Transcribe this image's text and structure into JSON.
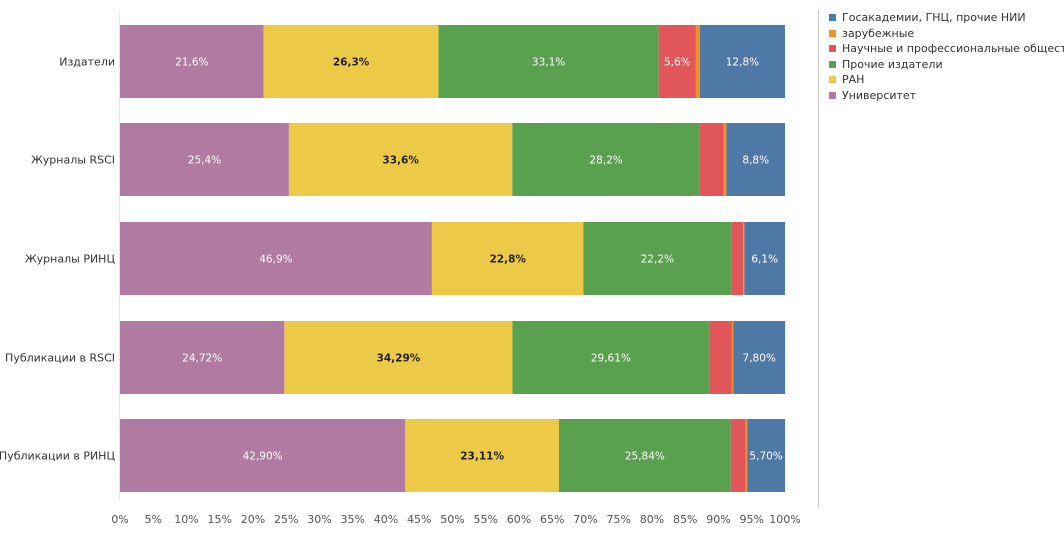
{
  "chart_data": {
    "type": "bar",
    "orientation": "horizontal",
    "stacked": true,
    "percent_scale": true,
    "categories": [
      "Издатели",
      "Журналы RSCI",
      "Журналы РИНЦ",
      "Публикации в RSCI",
      "Публикации в РИНЦ"
    ],
    "series": [
      {
        "name": "Университет",
        "color": "#b07aa1",
        "values": [
          21.6,
          25.4,
          46.9,
          24.72,
          42.9
        ],
        "labels": [
          "21,6%",
          "25,4%",
          "46,9%",
          "24,72%",
          "42,90%"
        ]
      },
      {
        "name": "РАН",
        "color": "#edc948",
        "values": [
          26.3,
          33.6,
          22.8,
          34.29,
          23.11
        ],
        "labels": [
          "26,3%",
          "33,6%",
          "22,8%",
          "34,29%",
          "23,11%"
        ]
      },
      {
        "name": "Прочие издатели",
        "color": "#59a14f",
        "values": [
          33.1,
          28.2,
          22.2,
          29.61,
          25.84
        ],
        "labels": [
          "33,1%",
          "28,2%",
          "22,2%",
          "29,61%",
          "25,84%"
        ]
      },
      {
        "name": "Научные и профессиональные общества",
        "color": "#e15759",
        "values": [
          5.6,
          3.6,
          1.8,
          3.4,
          2.2
        ],
        "labels": [
          "5,6%",
          "",
          "",
          "",
          ""
        ]
      },
      {
        "name": "зарубежные",
        "color": "#f28e2b",
        "values": [
          0.6,
          0.4,
          0.2,
          0.2,
          0.26
        ],
        "labels": [
          "",
          "",
          "",
          "",
          ""
        ]
      },
      {
        "name": "Госакадемии, ГНЦ, прочие НИИ",
        "color": "#4e79a7",
        "values": [
          12.8,
          8.8,
          6.1,
          7.8,
          5.7
        ],
        "labels": [
          "12,8%",
          "8,8%",
          "6,1%",
          "7,80%",
          "5,70%"
        ]
      }
    ],
    "label_colors": {
      "Университет": "#ffffff",
      "РАН": "#222222",
      "Прочие издатели": "#ffffff",
      "Научные и профессиональные общества": "#ffffff",
      "зарубежные": "#ffffff",
      "Госакадемии, ГНЦ, прочие НИИ": "#ffffff"
    },
    "xlim": [
      0,
      100
    ],
    "x_ticks": [
      "0%",
      "5%",
      "10%",
      "15%",
      "20%",
      "25%",
      "30%",
      "35%",
      "40%",
      "45%",
      "50%",
      "55%",
      "60%",
      "65%",
      "70%",
      "75%",
      "80%",
      "85%",
      "90%",
      "95%",
      "100%"
    ],
    "legend": {
      "position": "right",
      "items": [
        {
          "name": "Госакадемии, ГНЦ, прочие НИИ",
          "color": "#4e79a7"
        },
        {
          "name": "зарубежные",
          "color": "#f28e2b"
        },
        {
          "name": "Научные и профессиональные общества",
          "color": "#e15759"
        },
        {
          "name": "Прочие издатели",
          "color": "#59a14f"
        },
        {
          "name": "РАН",
          "color": "#edc948"
        },
        {
          "name": "Университет",
          "color": "#b07aa1"
        }
      ]
    },
    "grid": false,
    "title": "",
    "xlabel": "",
    "ylabel": ""
  }
}
